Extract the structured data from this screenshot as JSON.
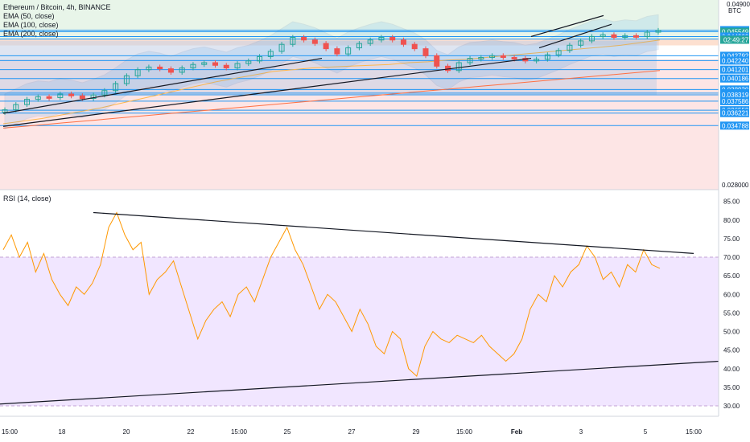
{
  "legend": {
    "title": "Ethereum / Bitcoin, 4h, BINANCE",
    "ema50": "EMA (50, close)",
    "ema100": "EMA (100, close)",
    "ema200": "EMA (200, close)",
    "rsi": "RSI (14, close)"
  },
  "currency": "BTC",
  "colors": {
    "up": "#26a69a",
    "down": "#ef5350",
    "blue_line": "#2196f3",
    "rsi_line": "#ff9800",
    "rsi_band": "#f1e6ff",
    "green_zone": "#e8f5e9",
    "red_zone": "#fde5e5"
  },
  "chart_data": [
    {
      "type": "line",
      "title": "Ethereum / Bitcoin, 4h, BINANCE",
      "y_axis_ticks": [
        0.028,
        0.03478
      ],
      "price_levels": [
        "0.045733",
        "0.045549",
        "0.044999",
        "0.044711",
        "0.042792",
        "0.042240",
        "0.041201",
        "0.040186",
        "0.038930",
        "0.038509",
        "0.038319",
        "0.037586",
        "0.036553",
        "0.036221",
        "0.034788"
      ],
      "current_price": "0.045549",
      "countdown": "02:49:27",
      "top_tag": "0.04900",
      "x_tick_labels": [
        "15:00",
        "18",
        "20",
        "22",
        "15:00",
        "25",
        "27",
        "29",
        "15:00",
        "Feb",
        "3",
        "5",
        "15:00"
      ],
      "ylim": [
        0.028,
        0.05
      ],
      "series": [
        {
          "name": "ETH/BTC",
          "values": [
            0.0366,
            0.0372,
            0.0378,
            0.0381,
            0.038,
            0.0384,
            0.0382,
            0.0379,
            0.0383,
            0.0388,
            0.0396,
            0.0405,
            0.0412,
            0.0415,
            0.0413,
            0.0409,
            0.0414,
            0.0418,
            0.042,
            0.0417,
            0.0414,
            0.0419,
            0.0422,
            0.0427,
            0.0433,
            0.0441,
            0.0449,
            0.0446,
            0.0442,
            0.0436,
            0.043,
            0.0437,
            0.0442,
            0.0446,
            0.0449,
            0.0446,
            0.0441,
            0.0436,
            0.0428,
            0.0416,
            0.0411,
            0.042,
            0.0425,
            0.0426,
            0.0428,
            0.0426,
            0.0425,
            0.0422,
            0.0424,
            0.0429,
            0.0434,
            0.044,
            0.0445,
            0.045,
            0.0452,
            0.0449,
            0.0451,
            0.045,
            0.0455,
            0.0457
          ]
        },
        {
          "name": "EMA (50, close)",
          "values": [
            0.035,
            0.0353,
            0.0356,
            0.036,
            0.0364,
            0.0368,
            0.0373,
            0.0378,
            0.0383,
            0.0388,
            0.0393,
            0.0398,
            0.0402,
            0.0406,
            0.041,
            0.0412,
            0.0414,
            0.0415,
            0.0416,
            0.0417,
            0.0418,
            0.042,
            0.0421,
            0.0423,
            0.0424,
            0.0426,
            0.0428,
            0.043,
            0.0432,
            0.0434,
            0.0436,
            0.0438,
            0.044,
            0.0443,
            0.0446
          ]
        },
        {
          "name": "EMA (200, close)",
          "values": [
            0.0345,
            0.0348,
            0.0351,
            0.0354,
            0.0357,
            0.036,
            0.0363,
            0.0366,
            0.0369,
            0.0372,
            0.0375,
            0.0378,
            0.0381,
            0.0384,
            0.0387,
            0.039,
            0.0393,
            0.0396,
            0.0399,
            0.0402,
            0.0405,
            0.0408,
            0.0411
          ]
        }
      ]
    },
    {
      "type": "line",
      "title": "RSI (14, close)",
      "y_ticks": [
        30,
        35,
        40,
        45,
        50,
        55,
        60,
        65,
        70,
        75,
        80,
        85
      ],
      "ylim": [
        28.5,
        86
      ],
      "overbought": 70,
      "oversold": 30,
      "series": [
        {
          "name": "RSI (14, close)",
          "values": [
            72,
            76,
            70,
            74,
            66,
            71,
            64,
            60,
            57,
            62,
            60,
            63,
            68,
            78,
            82,
            76,
            72,
            74,
            60,
            64,
            66,
            69,
            62,
            55,
            48,
            53,
            56,
            58,
            54,
            60,
            62,
            58,
            64,
            70,
            74,
            78,
            72,
            68,
            62,
            56,
            60,
            58,
            54,
            50,
            56,
            52,
            46,
            44,
            50,
            48,
            40,
            38,
            46,
            50,
            48,
            47,
            49,
            48,
            47,
            49,
            46,
            44,
            42,
            44,
            48,
            56,
            60,
            58,
            65,
            62,
            66,
            68,
            73,
            70,
            64,
            66,
            62,
            68,
            66,
            72,
            68,
            67
          ]
        }
      ]
    }
  ]
}
